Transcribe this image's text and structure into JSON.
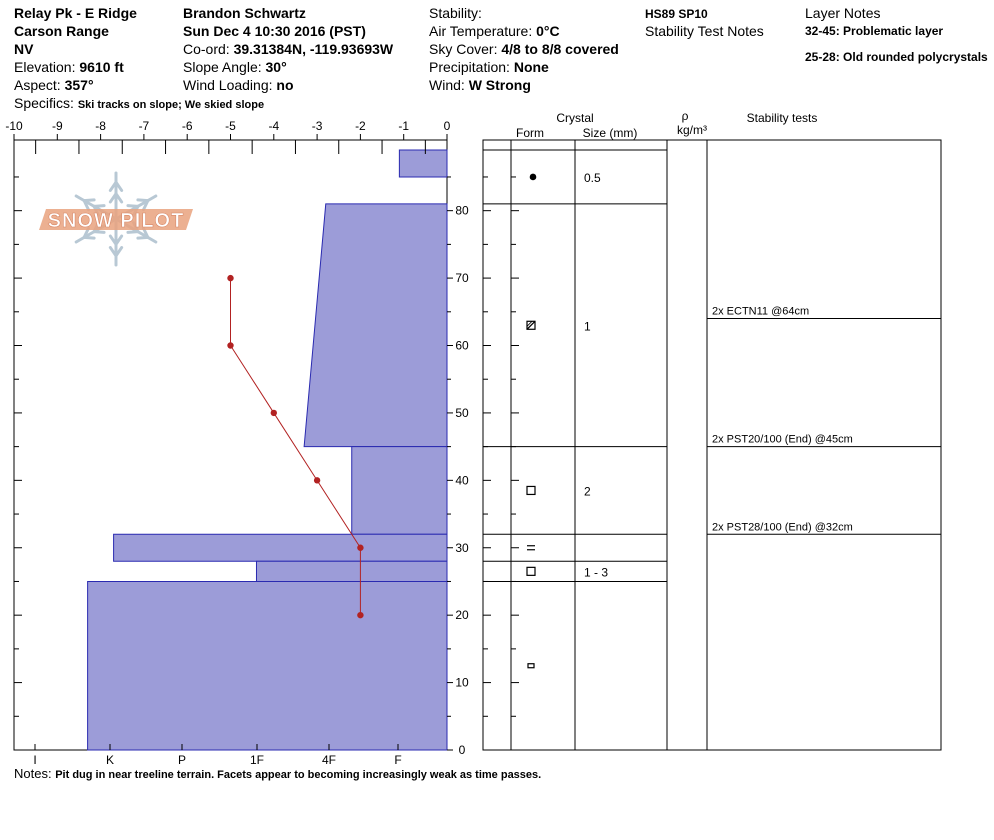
{
  "header": {
    "location": "Relay Pk - E Ridge",
    "range": "Carson Range",
    "state": "NV",
    "elevation_label": "Elevation:",
    "elevation_value": "9610 ft",
    "aspect_label": "Aspect:",
    "aspect_value": "357°",
    "specifics_label": "Specifics:",
    "specifics_value": "Ski tracks on slope; We skied slope",
    "observer": "Brandon Schwartz",
    "datetime": "Sun Dec 4 10:30 2016 (PST)",
    "coord_label": "Co-ord:",
    "coord_value": "39.31384N, -119.93693W",
    "slope_label": "Slope Angle:",
    "slope_value": "30°",
    "wind_loading_label": "Wind Loading:",
    "wind_loading_value": "no",
    "stability_label": "Stability:",
    "air_temp_label": "Air Temperature:",
    "air_temp_value": "0°C",
    "sky_label": "Sky Cover:",
    "sky_value": "4/8 to 8/8 covered",
    "precip_label": "Precipitation:",
    "precip_value": "None",
    "wind_label": "Wind:",
    "wind_value": "W Strong",
    "hs": "HS89 SP10",
    "stability_notes_label": "Stability Test Notes",
    "layer_notes_label": "Layer Notes",
    "layer_notes": [
      {
        "range": "32-45:",
        "text": "Problematic layer"
      },
      {
        "range": "25-28:",
        "text": "Old rounded polycrystals"
      }
    ]
  },
  "notes_label": "Notes:",
  "notes_value": "Pit dug in near treeline terrain. Facets appear to becoming increasingly weak as time passes.",
  "logo_text": "SNOW PILOT",
  "columns": {
    "crystal": "Crystal",
    "form": "Form",
    "size": "Size (mm)",
    "rho": "ρ",
    "density_unit": "kg/m³",
    "stability": "Stability tests"
  },
  "chart_data": {
    "type": "snow-profile",
    "temperature_axis": {
      "range": [
        -10,
        0
      ],
      "ticks": [
        "-10",
        "-9",
        "-8",
        "-7",
        "-6",
        "-5",
        "-4",
        "-3",
        "-2",
        "-1",
        "0"
      ]
    },
    "height_axis": {
      "range": [
        0,
        89
      ],
      "ticks": [
        "0",
        "10",
        "20",
        "30",
        "40",
        "50",
        "60",
        "70",
        "80"
      ]
    },
    "hardness_axis": {
      "ticks": [
        "I",
        "K",
        "P",
        "1F",
        "4F",
        "F"
      ]
    },
    "hardness_layers": [
      {
        "bottom": 85,
        "top": 89,
        "hardness_temp_scale": -1.1
      },
      {
        "bottom": 45,
        "top": 81,
        "hardness_temp_scale_top": -2.8,
        "hardness_temp_scale_bottom": -3.3
      },
      {
        "bottom": 32,
        "top": 45,
        "hardness_temp_scale": -2.2
      },
      {
        "bottom": 28,
        "top": 32,
        "hardness_temp_scale": -7.7
      },
      {
        "bottom": 25,
        "top": 28,
        "hardness_temp_scale": -4.4
      },
      {
        "bottom": 0,
        "top": 25,
        "hardness_temp_scale": -8.3
      }
    ],
    "layer_boundaries": [
      89,
      81,
      45,
      32,
      28,
      25,
      0
    ],
    "temperature_profile": [
      {
        "height": 70,
        "temp": -5
      },
      {
        "height": 60,
        "temp": -5
      },
      {
        "height": 50,
        "temp": -4
      },
      {
        "height": 40,
        "temp": -3
      },
      {
        "height": 30,
        "temp": -2
      },
      {
        "height": 20,
        "temp": -2
      }
    ],
    "crystals": [
      {
        "height": 85,
        "form": "dot",
        "size": "0.5"
      },
      {
        "height": 63,
        "form": "square-hatched",
        "size": "1"
      },
      {
        "height": 38.5,
        "form": "square",
        "size": "2"
      },
      {
        "height": 30,
        "form": "equal",
        "size": ""
      },
      {
        "height": 26.5,
        "form": "square",
        "size": "1 - 3"
      },
      {
        "height": 12.5,
        "form": "small-rect",
        "size": ""
      }
    ],
    "stability_tests": [
      {
        "height": 64,
        "text": "2x ECTN11 @64cm"
      },
      {
        "height": 45,
        "text": "2x PST20/100 (End) @45cm"
      },
      {
        "height": 32,
        "text": "2x PST28/100 (End) @32cm"
      }
    ],
    "colors": {
      "layer_fill": "#9c9cd8",
      "layer_stroke": "#2a2ab0",
      "temp_line": "#b22222",
      "logo": "#e9a27e",
      "logo_flake": "#b8c8d4"
    }
  }
}
